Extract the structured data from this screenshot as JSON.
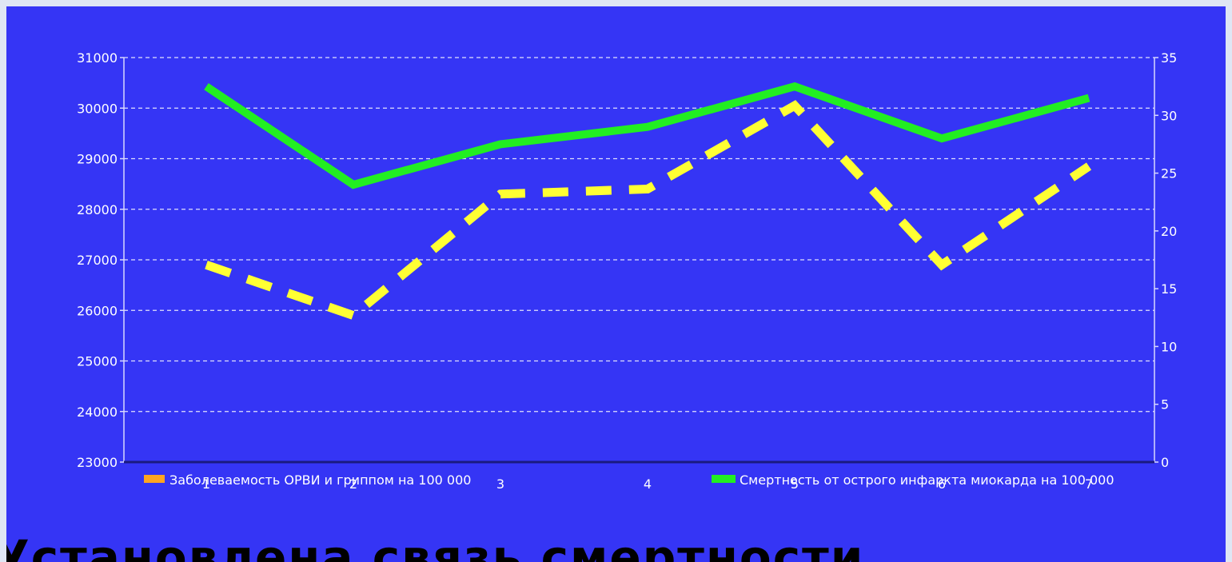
{
  "colors": {
    "background": "#3535f5",
    "series_a": "#ffff33",
    "series_b": "#22ee22",
    "legend_a_swatch": "#ffa521",
    "grid": "#ffffff"
  },
  "caption": "Установлена связь смертности",
  "chart_data": {
    "type": "line",
    "categories": [
      "1",
      "2",
      "3",
      "4",
      "5",
      "6",
      "7"
    ],
    "series": [
      {
        "name": "Заболеваемость ОРВИ и гриппом на 100 000",
        "axis": "left",
        "style": "dashed",
        "values": [
          26900,
          25900,
          28300,
          28400,
          30050,
          26900,
          28850
        ]
      },
      {
        "name": "Смертность от острого инфаркта миокарда на 100 000",
        "axis": "right",
        "style": "solid",
        "values": [
          32.5,
          24,
          27.5,
          29,
          32.5,
          28,
          31.5
        ]
      }
    ],
    "y_left": {
      "min": 23000,
      "max": 31000,
      "ticks": [
        23000,
        24000,
        25000,
        26000,
        27000,
        28000,
        29000,
        30000,
        31000
      ]
    },
    "y_right": {
      "min": 0,
      "max": 35,
      "ticks": [
        0,
        5,
        10,
        15,
        20,
        25,
        30,
        35
      ]
    },
    "grid": true,
    "legend": "bottom"
  }
}
